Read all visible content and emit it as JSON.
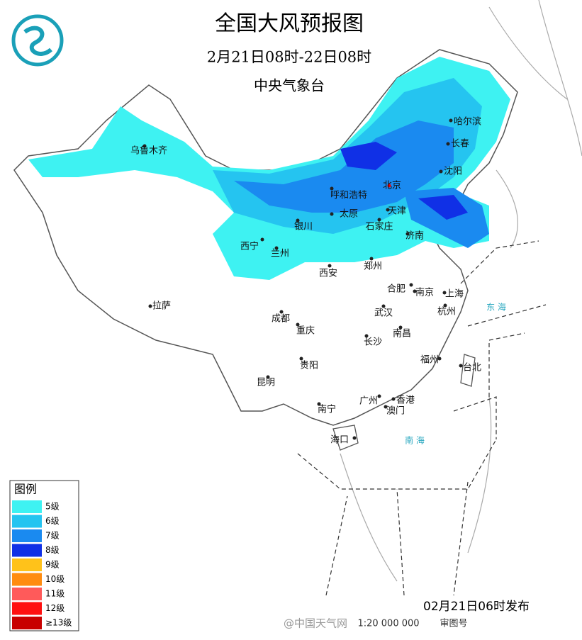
{
  "header": {
    "title": "全国大风预报图",
    "period": "2月21日08时-22日08时",
    "issuer": "中央气象台"
  },
  "cities": [
    "哈尔滨",
    "长春",
    "沈阳",
    "乌鲁木齐",
    "北京",
    "呼和浩特",
    "天津",
    "太原",
    "石家庄",
    "银川",
    "济南",
    "西宁",
    "兰州",
    "郑州",
    "西安",
    "合肥",
    "南京",
    "上海",
    "拉萨",
    "杭州",
    "成都",
    "武汉",
    "重庆",
    "南昌",
    "长沙",
    "福州",
    "贵阳",
    "台北",
    "昆明",
    "广州",
    "香港",
    "澳门",
    "南宁",
    "海口"
  ],
  "seas": [
    "东 海",
    "南 海"
  ],
  "legend": {
    "title": "图例",
    "items": [
      {
        "label": "5级",
        "color": "#3ef2f2"
      },
      {
        "label": "6级",
        "color": "#25c4f0"
      },
      {
        "label": "7级",
        "color": "#1a8af0"
      },
      {
        "label": "8级",
        "color": "#1030e6"
      },
      {
        "label": "9级",
        "color": "#ffc21a"
      },
      {
        "label": "10级",
        "color": "#ff8c10"
      },
      {
        "label": "11级",
        "color": "#ff5a5a"
      },
      {
        "label": "12级",
        "color": "#ff1010"
      },
      {
        "label": "≥13级",
        "color": "#c80000"
      }
    ]
  },
  "footer": {
    "issued": "02月21日06时发布",
    "source": "@中国天气网",
    "scale": "1:20 000 000",
    "review": "审图号"
  }
}
